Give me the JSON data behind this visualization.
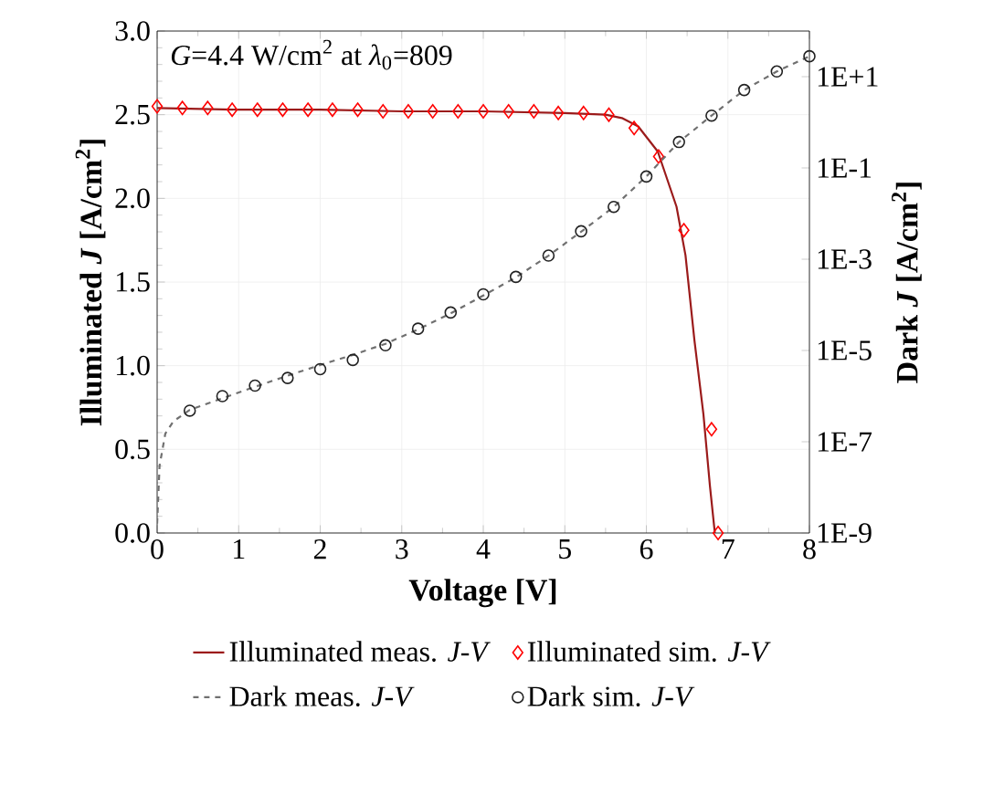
{
  "chart_data": {
    "type": "line",
    "xlabel": "Voltage [V]",
    "ylabel": "Illuminated *J* [A/cm$^{2}$]",
    "y2label": "Dark *J* [A/cm$^{2}$]",
    "annotations": [
      "*G*=4.4 W/cm$^{2}$    at    *λ*$_{0}$=809"
    ],
    "xlim": [
      0,
      8
    ],
    "xticks": [
      0,
      1,
      2,
      3,
      4,
      5,
      6,
      7,
      8
    ],
    "ylim": [
      0,
      3
    ],
    "yticks": [
      {
        "value": 0,
        "label": "0.0"
      },
      {
        "value": 0.5,
        "label": "0.5"
      },
      {
        "value": 1,
        "label": "1.0"
      },
      {
        "value": 1.5,
        "label": "1.5"
      },
      {
        "value": 2,
        "label": "2.0"
      },
      {
        "value": 2.5,
        "label": "2.5"
      },
      {
        "value": 3,
        "label": "3.0"
      }
    ],
    "y2lim": [
      1e-09,
      100
    ],
    "y2ticks": [
      {
        "value": 1e-09,
        "label": "1E-9"
      },
      {
        "value": 1e-07,
        "label": "1E-7"
      },
      {
        "value": 1e-05,
        "label": "1E-5"
      },
      {
        "value": 0.001,
        "label": "1E-3"
      },
      {
        "value": 0.1,
        "label": "1E-1"
      },
      {
        "value": 10,
        "label": "1E+1"
      }
    ],
    "log": "y2",
    "grid": true,
    "legend": "bottom",
    "series": [
      {
        "name": "Illuminated meas. *J-V*",
        "line_style": "solid",
        "marker": "none",
        "color": "#9b1b1b",
        "x": [
          0,
          1,
          2,
          3,
          4,
          5,
          5.5,
          5.7,
          5.9,
          6.14,
          6.37,
          6.48,
          6.59,
          6.7,
          6.78,
          6.84
        ],
        "values": [
          2.54,
          2.53,
          2.53,
          2.52,
          2.52,
          2.51,
          2.5,
          2.48,
          2.43,
          2.28,
          1.95,
          1.66,
          1.15,
          0.71,
          0.28,
          0
        ]
      },
      {
        "name": "Illuminated sim. *J-V*",
        "type": "scatter",
        "marker": "diamond",
        "color": "#ff0000",
        "x": [
          0,
          0.31,
          0.62,
          0.92,
          1.23,
          1.54,
          1.85,
          2.15,
          2.46,
          2.77,
          3.08,
          3.38,
          3.69,
          4.0,
          4.31,
          4.62,
          4.92,
          5.23,
          5.54,
          5.85,
          6.15,
          6.46,
          6.8,
          6.88
        ],
        "values": [
          2.55,
          2.54,
          2.54,
          2.53,
          2.53,
          2.53,
          2.53,
          2.53,
          2.53,
          2.52,
          2.52,
          2.52,
          2.52,
          2.52,
          2.52,
          2.52,
          2.51,
          2.51,
          2.5,
          2.42,
          2.25,
          1.81,
          0.62,
          0
        ]
      },
      {
        "name": "Dark meas. *J-V*",
        "line_style": "dashed",
        "marker": "none",
        "color": "#707070",
        "axis": "y2",
        "x": [
          0,
          0.03,
          0.1,
          0.2,
          0.4,
          0.8,
          1.2,
          1.6,
          2.0,
          2.4,
          2.8,
          3.2,
          3.6,
          4.0,
          4.4,
          4.8,
          5.2,
          5.6,
          6.0,
          6.4,
          6.8,
          7.2,
          7.6,
          8.0
        ],
        "values": [
          1.6e-09,
          3e-08,
          1.5e-07,
          2.8e-07,
          5e-07,
          9e-07,
          1.6e-06,
          2.8e-06,
          4.8e-06,
          8e-06,
          1.4e-05,
          2.9e-05,
          6.5e-05,
          0.00016,
          0.0004,
          0.0012,
          0.004,
          0.014,
          0.065,
          0.37,
          1.4,
          5.1,
          13,
          28
        ]
      },
      {
        "name": "Dark sim. *J-V*",
        "type": "scatter",
        "marker": "circle",
        "color": "#222222",
        "axis": "y2",
        "x": [
          0.4,
          0.8,
          1.2,
          1.6,
          2.0,
          2.4,
          2.8,
          3.2,
          3.6,
          4.0,
          4.4,
          4.8,
          5.2,
          5.6,
          6.0,
          6.4,
          6.8,
          7.2,
          7.6,
          8.0
        ],
        "values": [
          4.8e-07,
          1e-06,
          1.7e-06,
          2.5e-06,
          3.9e-06,
          6.2e-06,
          1.3e-05,
          3e-05,
          6.8e-05,
          0.00017,
          0.00041,
          0.0012,
          0.0041,
          0.014,
          0.065,
          0.37,
          1.4,
          5.1,
          13,
          28
        ]
      }
    ]
  }
}
